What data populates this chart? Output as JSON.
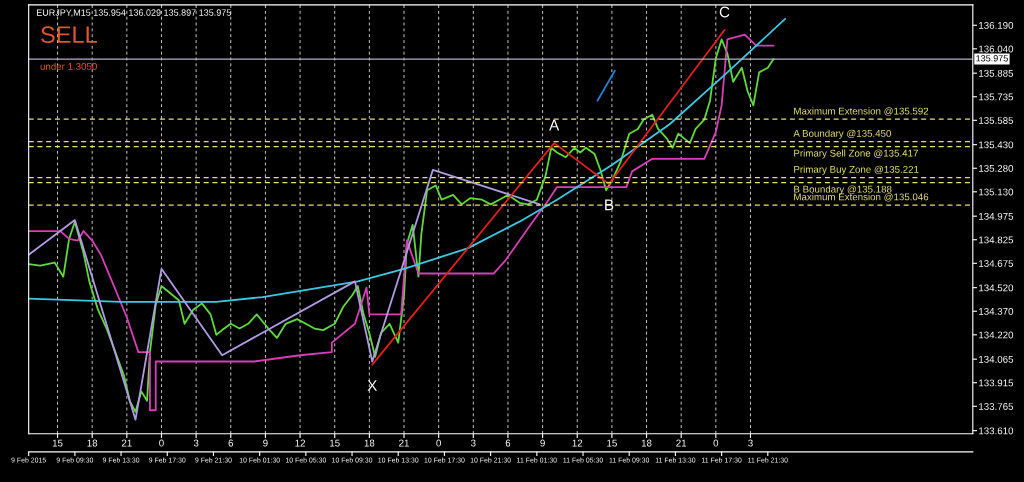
{
  "chart_data": {
    "type": "line",
    "title": "EURJPY,M15 135.954 136.029 135.897 135.975",
    "annotations": [
      "SELL",
      "under 1.3050",
      {
        "text": "X",
        "x": "2015-02-10T18:15",
        "y": 134.03
      },
      {
        "text": "A",
        "x": "2015-02-11T10:00",
        "y": 135.44
      },
      {
        "text": "B",
        "x": "2015-02-11T14:45",
        "y": 135.18
      },
      {
        "text": "C",
        "x": "2015-02-12T00:45",
        "y": 136.16
      }
    ],
    "series": [
      {
        "color": "#5fd93c",
        "x": [
          "2015-02-09T12:30",
          "2015-02-09T13:30",
          "2015-02-09T14:45",
          "2015-02-09T15:30",
          "2015-02-09T16:00",
          "2015-02-09T16:30",
          "2015-02-09T17:15",
          "2015-02-09T17:45",
          "2015-02-09T18:30",
          "2015-02-09T19:15",
          "2015-02-09T20:00",
          "2015-02-09T20:45",
          "2015-02-09T21:15",
          "2015-02-09T21:45",
          "2015-02-09T22:15",
          "2015-02-09T22:45",
          "2015-02-09T23:00",
          "2015-02-09T23:30",
          "2015-02-10T00:00",
          "2015-02-10T00:30",
          "2015-02-10T01:30",
          "2015-02-10T02:00",
          "2015-02-10T02:45",
          "2015-02-10T03:30",
          "2015-02-10T04:15",
          "2015-02-10T04:45",
          "2015-02-10T05:15",
          "2015-02-10T06:00",
          "2015-02-10T06:45",
          "2015-02-10T07:30",
          "2015-02-10T08:15",
          "2015-02-10T09:15",
          "2015-02-10T10:00",
          "2015-02-10T10:45",
          "2015-02-10T11:45",
          "2015-02-10T12:30",
          "2015-02-10T13:15",
          "2015-02-10T14:00",
          "2015-02-10T15:00",
          "2015-02-10T15:45",
          "2015-02-10T16:30",
          "2015-02-10T17:00",
          "2015-02-10T17:30",
          "2015-02-10T18:00",
          "2015-02-10T18:30",
          "2015-02-10T19:00",
          "2015-02-10T19:45",
          "2015-02-10T20:30",
          "2015-02-10T21:00",
          "2015-02-10T21:15",
          "2015-02-10T21:45",
          "2015-02-10T22:15",
          "2015-02-10T22:30",
          "2015-02-10T23:00",
          "2015-02-10T23:45",
          "2015-02-11T00:15",
          "2015-02-11T01:15",
          "2015-02-11T02:00",
          "2015-02-11T02:45",
          "2015-02-11T03:45",
          "2015-02-11T04:30",
          "2015-02-11T05:15",
          "2015-02-11T06:00",
          "2015-02-11T07:00",
          "2015-02-11T07:45",
          "2015-02-11T08:30",
          "2015-02-11T09:15",
          "2015-02-11T09:45",
          "2015-02-11T10:15",
          "2015-02-11T11:00",
          "2015-02-11T11:45",
          "2015-02-11T12:15",
          "2015-02-11T12:45",
          "2015-02-11T13:30",
          "2015-02-11T14:00",
          "2015-02-11T14:30",
          "2015-02-11T15:00",
          "2015-02-11T15:45",
          "2015-02-11T16:30",
          "2015-02-11T17:15",
          "2015-02-11T17:45",
          "2015-02-11T18:30",
          "2015-02-11T19:00",
          "2015-02-11T19:45",
          "2015-02-11T20:15",
          "2015-02-11T20:45",
          "2015-02-11T21:45",
          "2015-02-11T22:15",
          "2015-02-11T23:00",
          "2015-02-11T23:30",
          "2015-02-12T00:00",
          "2015-02-12T00:30",
          "2015-02-12T01:00",
          "2015-02-12T01:30",
          "2015-02-12T02:15",
          "2015-02-12T02:45",
          "2015-02-12T03:15",
          "2015-02-12T03:45",
          "2015-02-12T04:30",
          "2015-02-12T05:00"
        ],
        "values": [
          134.67,
          134.66,
          134.68,
          134.59,
          134.83,
          134.94,
          134.74,
          134.56,
          134.38,
          134.26,
          134.11,
          133.96,
          133.8,
          133.73,
          133.86,
          133.8,
          134.11,
          134.41,
          134.53,
          134.5,
          134.44,
          134.29,
          134.38,
          134.42,
          134.35,
          134.22,
          134.25,
          134.29,
          134.26,
          134.29,
          134.35,
          134.26,
          134.2,
          134.29,
          134.32,
          134.29,
          134.26,
          134.25,
          134.29,
          134.4,
          134.47,
          134.53,
          134.35,
          134.23,
          134.08,
          134.23,
          134.29,
          134.17,
          134.47,
          134.8,
          134.92,
          134.59,
          134.86,
          135.14,
          135.17,
          135.08,
          135.11,
          135.05,
          135.09,
          135.08,
          135.05,
          135.08,
          135.11,
          135.06,
          135.05,
          135.08,
          135.23,
          135.41,
          135.38,
          135.35,
          135.41,
          135.38,
          135.41,
          135.37,
          135.27,
          135.14,
          135.2,
          135.32,
          135.5,
          135.53,
          135.59,
          135.62,
          135.53,
          135.47,
          135.41,
          135.5,
          135.44,
          135.53,
          135.59,
          135.71,
          135.98,
          136.1,
          136.01,
          135.83,
          135.92,
          135.77,
          135.68,
          135.89,
          135.92,
          135.975
        ]
      },
      {
        "color": "#d63fb5",
        "x": [
          "2015-02-09T12:30",
          "2015-02-09T15:15",
          "2015-02-09T16:00",
          "2015-02-09T16:45",
          "2015-02-09T17:15",
          "2015-02-09T18:00",
          "2015-02-09T18:45",
          "2015-02-09T20:00",
          "2015-02-09T21:00",
          "2015-02-09T22:00",
          "2015-02-09T23:00",
          "2015-02-09T23:00",
          "2015-02-09T23:30",
          "2015-02-09T23:30",
          "2015-02-10T08:00",
          "2015-02-10T12:00",
          "2015-02-10T14:45",
          "2015-02-10T14:45",
          "2015-02-10T16:45",
          "2015-02-10T17:45",
          "2015-02-10T18:00",
          "2015-02-10T20:45",
          "2015-02-10T21:15",
          "2015-02-10T22:15",
          "2015-02-11T04:45",
          "2015-02-11T05:45",
          "2015-02-11T07:00",
          "2015-02-11T08:15",
          "2015-02-11T09:15",
          "2015-02-11T10:15",
          "2015-02-11T16:15",
          "2015-02-11T16:45",
          "2015-02-11T18:30",
          "2015-02-11T23:00",
          "2015-02-12T00:00",
          "2015-02-12T00:30",
          "2015-02-12T01:00",
          "2015-02-12T02:30",
          "2015-02-12T03:30",
          "2015-02-12T05:00"
        ],
        "values": [
          134.88,
          134.88,
          134.83,
          134.82,
          134.88,
          134.82,
          134.73,
          134.51,
          134.33,
          134.11,
          134.11,
          133.74,
          133.74,
          134.05,
          134.05,
          134.09,
          134.11,
          134.17,
          134.29,
          134.52,
          134.35,
          134.35,
          134.82,
          134.61,
          134.61,
          134.69,
          134.82,
          134.95,
          135.05,
          135.16,
          135.16,
          135.26,
          135.34,
          135.34,
          135.51,
          135.68,
          136.1,
          136.13,
          136.06,
          136.06
        ]
      },
      {
        "color": "#3cc8e0",
        "x": [
          "2015-02-09T12:30",
          "2015-02-09T20:30",
          "2015-02-10T04:45",
          "2015-02-10T08:45",
          "2015-02-10T17:00",
          "2015-02-10T21:00",
          "2015-02-11T02:30",
          "2015-02-11T07:00",
          "2015-02-11T10:15",
          "2015-02-11T15:00",
          "2015-02-11T20:00",
          "2015-02-12T01:00",
          "2015-02-12T06:00"
        ],
        "values": [
          134.45,
          134.43,
          134.43,
          134.46,
          134.56,
          134.64,
          134.77,
          134.94,
          135.08,
          135.3,
          135.56,
          135.89,
          136.23
        ]
      },
      {
        "color": "#b09ae0",
        "x": [
          "2015-02-09T12:30",
          "2015-02-09T16:30",
          "2015-02-09T21:45",
          "2015-02-10T00:00",
          "2015-02-10T05:15",
          "2015-02-10T16:45",
          "2015-02-10T18:15",
          "2015-02-10T23:30",
          "2015-02-11T08:45"
        ],
        "values": [
          134.73,
          134.95,
          133.68,
          134.64,
          134.09,
          134.56,
          134.05,
          135.27,
          135.05
        ]
      },
      {
        "color": "#e0201a",
        "x": [
          "2015-02-10T18:15",
          "2015-02-11T10:00",
          "2015-02-11T14:45",
          "2015-02-12T00:45"
        ],
        "values": [
          134.03,
          135.44,
          135.18,
          136.16
        ]
      },
      {
        "color": "#1e7fd0",
        "x": [
          "2015-02-11T13:45",
          "2015-02-11T15:15"
        ],
        "values": [
          135.71,
          135.9
        ]
      }
    ],
    "xlim": [
      "2015-02-09T12:30",
      "2015-02-12T22:15"
    ],
    "xticks": [
      {
        "value": "2015-02-09T15:00",
        "label": "15"
      },
      {
        "value": "2015-02-09T18:00",
        "label": "18"
      },
      {
        "value": "2015-02-09T21:00",
        "label": "21"
      },
      {
        "value": "2015-02-10T00:00",
        "label": "0"
      },
      {
        "value": "2015-02-10T03:00",
        "label": "3"
      },
      {
        "value": "2015-02-10T06:00",
        "label": "6"
      },
      {
        "value": "2015-02-10T09:00",
        "label": "9"
      },
      {
        "value": "2015-02-10T12:00",
        "label": "12"
      },
      {
        "value": "2015-02-10T15:00",
        "label": "15"
      },
      {
        "value": "2015-02-10T18:00",
        "label": "18"
      },
      {
        "value": "2015-02-10T21:00",
        "label": "21"
      },
      {
        "value": "2015-02-11T00:00",
        "label": "0"
      },
      {
        "value": "2015-02-11T03:00",
        "label": "3"
      },
      {
        "value": "2015-02-11T06:00",
        "label": "6"
      },
      {
        "value": "2015-02-11T09:00",
        "label": "9"
      },
      {
        "value": "2015-02-11T12:00",
        "label": "12"
      },
      {
        "value": "2015-02-11T15:00",
        "label": "15"
      },
      {
        "value": "2015-02-11T18:00",
        "label": "18"
      },
      {
        "value": "2015-02-11T21:00",
        "label": "21"
      },
      {
        "value": "2015-02-12T00:00",
        "label": "0"
      },
      {
        "value": "2015-02-12T03:00",
        "label": "3"
      }
    ],
    "x2lim": [
      "2015-02-09T05:30",
      "2015-02-12T15:15"
    ],
    "x2ticks": [
      {
        "value": "2015-02-09T05:30",
        "label": "9 Feb 2015"
      },
      {
        "value": "2015-02-09T09:30",
        "label": "9 Feb 09:30"
      },
      {
        "value": "2015-02-09T13:30",
        "label": "9 Feb 13:30"
      },
      {
        "value": "2015-02-09T17:30",
        "label": "9 Feb 17:30"
      },
      {
        "value": "2015-02-09T21:30",
        "label": "9 Feb 21:30"
      },
      {
        "value": "2015-02-10T01:30",
        "label": "10 Feb 01:30"
      },
      {
        "value": "2015-02-10T05:30",
        "label": "10 Feb 05:30"
      },
      {
        "value": "2015-02-10T09:30",
        "label": "10 Feb 09:30"
      },
      {
        "value": "2015-02-10T13:30",
        "label": "10 Feb 13:30"
      },
      {
        "value": "2015-02-10T17:30",
        "label": "10 Feb 17:30"
      },
      {
        "value": "2015-02-10T21:30",
        "label": "10 Feb 21:30"
      },
      {
        "value": "2015-02-11T01:30",
        "label": "11 Feb 01:30"
      },
      {
        "value": "2015-02-11T05:30",
        "label": "11 Feb 05:30"
      },
      {
        "value": "2015-02-11T09:30",
        "label": "11 Feb 09:30"
      },
      {
        "value": "2015-02-11T13:30",
        "label": "11 Feb 13:30"
      },
      {
        "value": "2015-02-11T17:30",
        "label": "11 Feb 17:30"
      },
      {
        "value": "2015-02-11T21:30",
        "label": "11 Feb 21:30"
      }
    ],
    "ylim": [
      133.59,
      136.32
    ],
    "yticks": [
      {
        "value": 133.61,
        "label": "133.610"
      },
      {
        "value": 133.765,
        "label": "133.765"
      },
      {
        "value": 133.915,
        "label": "133.915"
      },
      {
        "value": 134.065,
        "label": "134.065"
      },
      {
        "value": 134.22,
        "label": "134.220"
      },
      {
        "value": 134.37,
        "label": "134.370"
      },
      {
        "value": 134.52,
        "label": "134.520"
      },
      {
        "value": 134.675,
        "label": "134.675"
      },
      {
        "value": 134.825,
        "label": "134.825"
      },
      {
        "value": 134.975,
        "label": "134.975"
      },
      {
        "value": 135.13,
        "label": "135.130"
      },
      {
        "value": 135.28,
        "label": "135.280"
      },
      {
        "value": 135.43,
        "label": "135.430"
      },
      {
        "value": 135.585,
        "label": "135.585"
      },
      {
        "value": 135.735,
        "label": "135.735"
      },
      {
        "value": 135.885,
        "label": "135.885"
      },
      {
        "value": 136.04,
        "label": "136.040"
      },
      {
        "value": 136.19,
        "label": "136.190"
      }
    ],
    "ref_lines": [
      {
        "axis": "y",
        "value": 135.975,
        "label": "135.975",
        "color": "#b0b0c0",
        "line_style": "solid"
      },
      {
        "axis": "y",
        "value": 135.592,
        "label": "Maximum Extension @135.592",
        "color": "#e8e070",
        "line_style": "dashed"
      },
      {
        "axis": "y",
        "value": 135.45,
        "label": "A Boundary @135.450",
        "color": "#e8e070",
        "line_style": "dashed"
      },
      {
        "axis": "y",
        "value": 135.417,
        "label": "Primary Sell Zone @135.417",
        "color": "#e8e070",
        "line_style": "dashed"
      },
      {
        "axis": "y",
        "value": 135.221,
        "label": "Primary Buy Zone @135.221",
        "color": "#e8e070",
        "line_style": "dashed"
      },
      {
        "axis": "y",
        "value": 135.188,
        "label": "B Boundary @135.188",
        "color": "#e8e070",
        "line_style": "dashed"
      },
      {
        "axis": "y",
        "value": 135.046,
        "label": "Maximum Extension @135.046",
        "color": "#e8e070",
        "line_style": "dashed"
      }
    ],
    "grid": "x",
    "legend": false
  }
}
